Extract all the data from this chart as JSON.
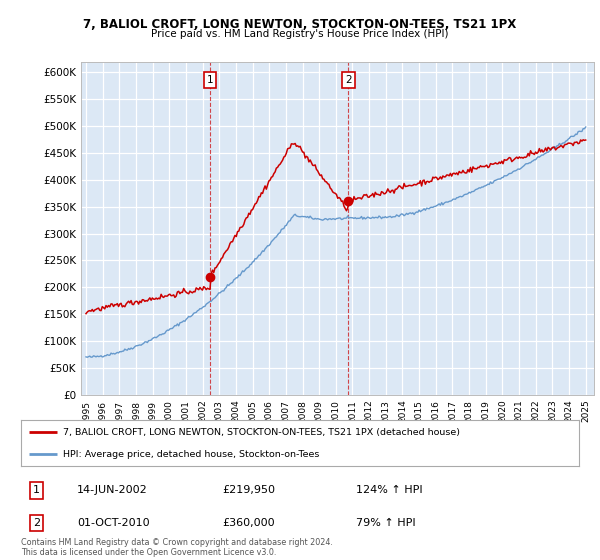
{
  "title1": "7, BALIOL CROFT, LONG NEWTON, STOCKTON-ON-TEES, TS21 1PX",
  "title2": "Price paid vs. HM Land Registry's House Price Index (HPI)",
  "ylabel_ticks": [
    "£0",
    "£50K",
    "£100K",
    "£150K",
    "£200K",
    "£250K",
    "£300K",
    "£350K",
    "£400K",
    "£450K",
    "£500K",
    "£550K",
    "£600K"
  ],
  "ylim": [
    0,
    620000
  ],
  "yticks": [
    0,
    50000,
    100000,
    150000,
    200000,
    250000,
    300000,
    350000,
    400000,
    450000,
    500000,
    550000,
    600000
  ],
  "sale1_date_num": 2002.45,
  "sale1_price": 219950,
  "sale2_date_num": 2010.75,
  "sale2_price": 360000,
  "legend_line1": "7, BALIOL CROFT, LONG NEWTON, STOCKTON-ON-TEES, TS21 1PX (detached house)",
  "legend_line2": "HPI: Average price, detached house, Stockton-on-Tees",
  "annotation1_date": "14-JUN-2002",
  "annotation1_price": "£219,950",
  "annotation1_hpi": "124% ↑ HPI",
  "annotation2_date": "01-OCT-2010",
  "annotation2_price": "£360,000",
  "annotation2_hpi": "79% ↑ HPI",
  "copyright_text": "Contains HM Land Registry data © Crown copyright and database right 2024.\nThis data is licensed under the Open Government Licence v3.0.",
  "red_color": "#cc0000",
  "blue_color": "#6699cc",
  "bg_plot": "#dce8f5",
  "grid_color": "#ffffff"
}
